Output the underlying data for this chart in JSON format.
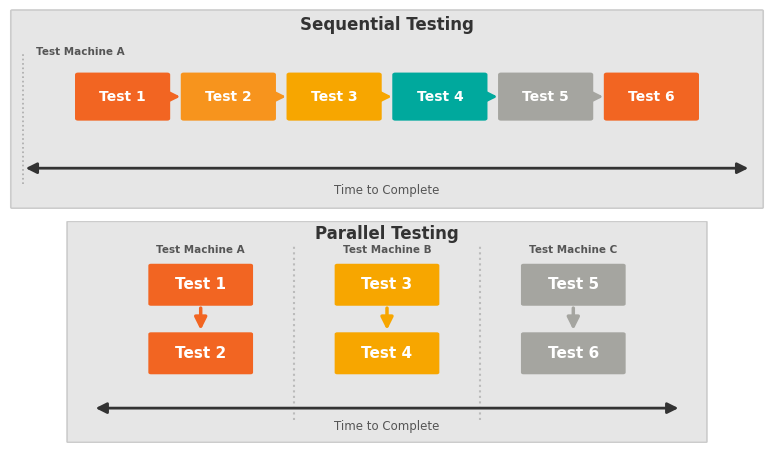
{
  "fig_bg": "#ffffff",
  "panel_bg": "#e6e6e6",
  "seq_title": "Sequential Testing",
  "par_title": "Parallel Testing",
  "seq_machine_label": "Test Machine A",
  "par_machine_labels": [
    "Test Machine A",
    "Test Machine B",
    "Test Machine C"
  ],
  "time_label": "Time to Complete",
  "seq_boxes": [
    {
      "label": "Test 1",
      "color": "#f26522"
    },
    {
      "label": "Test 2",
      "color": "#f7941d"
    },
    {
      "label": "Test 3",
      "color": "#f7a600"
    },
    {
      "label": "Test 4",
      "color": "#00a99d"
    },
    {
      "label": "Test 5",
      "color": "#a5a5a0"
    },
    {
      "label": "Test 6",
      "color": "#f26522"
    }
  ],
  "par_cols": [
    {
      "machine": "Test Machine A",
      "boxes": [
        {
          "label": "Test 1",
          "color": "#f26522"
        },
        {
          "label": "Test 2",
          "color": "#f26522"
        }
      ],
      "arrow_color": "#f26522"
    },
    {
      "machine": "Test Machine B",
      "boxes": [
        {
          "label": "Test 3",
          "color": "#f7a600"
        },
        {
          "label": "Test 4",
          "color": "#f7a600"
        }
      ],
      "arrow_color": "#f7a600"
    },
    {
      "machine": "Test Machine C",
      "boxes": [
        {
          "label": "Test 5",
          "color": "#a5a5a0"
        },
        {
          "label": "Test 6",
          "color": "#a5a5a0"
        }
      ],
      "arrow_color": "#a5a5a0"
    }
  ],
  "seq_arrow_color": "#333333",
  "box_text_color": "#ffffff",
  "title_color": "#333333",
  "label_color": "#555555",
  "divider_color": "#bbbbbb"
}
